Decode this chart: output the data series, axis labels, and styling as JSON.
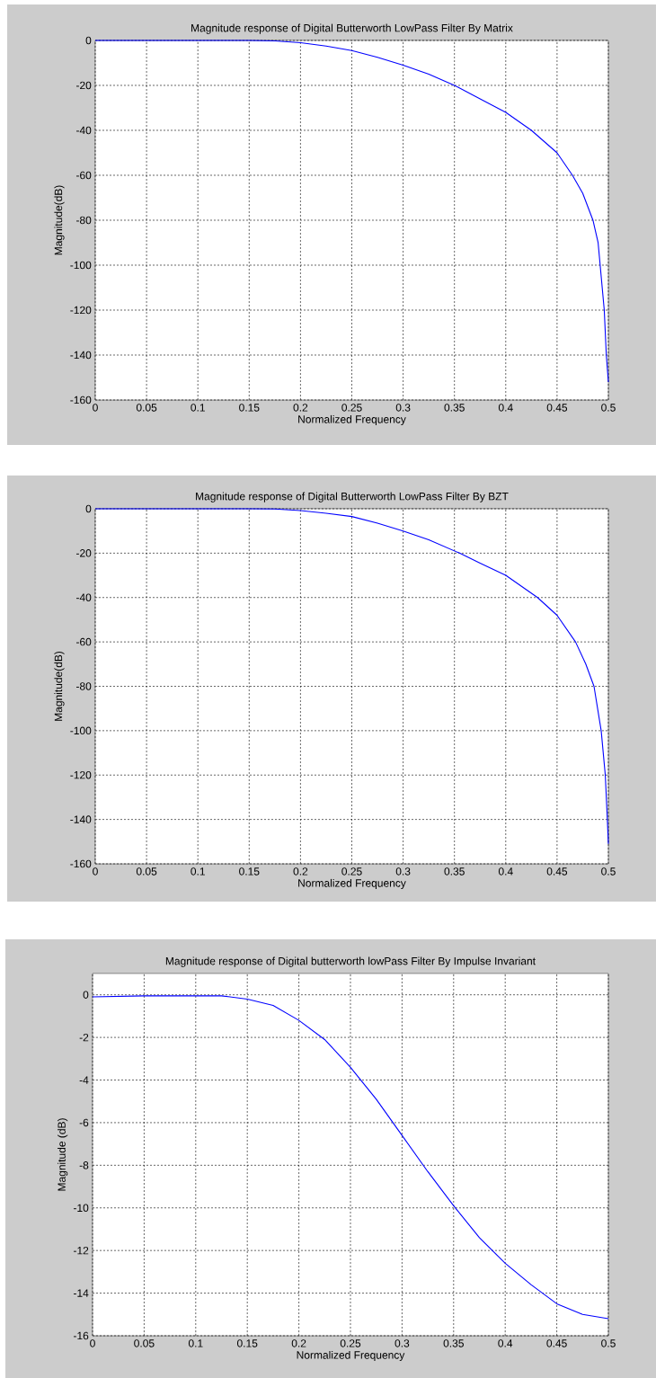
{
  "chart_data": [
    {
      "type": "line",
      "title": "Magnitude response of Digital Butterworth  LowPass Filter By Matrix",
      "xlabel": "Normalized Frequency",
      "ylabel": "Magnitude(dB)",
      "x": [
        0,
        0.05,
        0.1,
        0.15,
        0.175,
        0.2,
        0.225,
        0.25,
        0.275,
        0.3,
        0.325,
        0.35,
        0.375,
        0.4,
        0.425,
        0.45,
        0.465,
        0.475,
        0.485,
        0.49,
        0.492,
        0.496,
        0.498,
        0.5
      ],
      "series": [
        {
          "color": "#0000ff",
          "values": [
            0,
            0,
            0,
            0,
            -0.2,
            -1,
            -2.5,
            -4.5,
            -7.5,
            -11,
            -15,
            -20,
            -26,
            -32,
            -40,
            -50,
            -60,
            -68,
            -80,
            -90,
            -100,
            -120,
            -140,
            -152
          ]
        }
      ],
      "xlim": [
        0,
        0.5
      ],
      "ylim": [
        -160,
        0
      ],
      "xticks": [
        0,
        0.05,
        0.1,
        0.15,
        0.2,
        0.25,
        0.3,
        0.35,
        0.4,
        0.45,
        0.5
      ],
      "yticks": [
        -160,
        -140,
        -120,
        -100,
        -80,
        -60,
        -40,
        -20,
        0
      ],
      "grid": true
    },
    {
      "type": "line",
      "title": "Magnitude response of Digital Butterworth  LowPass Filter By BZT",
      "xlabel": "Normalized Frequency",
      "ylabel": "Magnitude(dB)",
      "x": [
        0,
        0.05,
        0.1,
        0.15,
        0.175,
        0.2,
        0.225,
        0.25,
        0.275,
        0.3,
        0.325,
        0.355,
        0.375,
        0.4,
        0.431,
        0.45,
        0.468,
        0.478,
        0.486,
        0.493,
        0.497,
        0.499,
        0.5
      ],
      "series": [
        {
          "color": "#0000ff",
          "values": [
            0,
            0,
            0,
            0,
            -0.1,
            -0.8,
            -2,
            -3.5,
            -6.5,
            -10,
            -14,
            -20,
            -24.5,
            -30,
            -40,
            -48,
            -60,
            -70,
            -80,
            -100,
            -120,
            -140,
            -151
          ]
        }
      ],
      "xlim": [
        0,
        0.5
      ],
      "ylim": [
        -160,
        0
      ],
      "xticks": [
        0,
        0.05,
        0.1,
        0.15,
        0.2,
        0.25,
        0.3,
        0.35,
        0.4,
        0.45,
        0.5
      ],
      "yticks": [
        -160,
        -140,
        -120,
        -100,
        -80,
        -60,
        -40,
        -20,
        0
      ],
      "grid": true
    },
    {
      "type": "line",
      "title": "Magnitude response of Digital butterworth lowPass Filter By Impulse Invariant",
      "xlabel": "Normalized Frequency",
      "ylabel": "Magnitude (dB)",
      "x": [
        0,
        0.05,
        0.1,
        0.125,
        0.15,
        0.175,
        0.2,
        0.225,
        0.25,
        0.275,
        0.3,
        0.325,
        0.35,
        0.375,
        0.4,
        0.425,
        0.45,
        0.475,
        0.5
      ],
      "series": [
        {
          "color": "#0000ff",
          "values": [
            -0.1,
            -0.05,
            -0.05,
            -0.05,
            -0.2,
            -0.5,
            -1.2,
            -2.1,
            -3.4,
            -4.9,
            -6.6,
            -8.3,
            -9.9,
            -11.4,
            -12.6,
            -13.6,
            -14.5,
            -15,
            -15.2
          ]
        }
      ],
      "xlim": [
        0,
        0.5
      ],
      "ylim": [
        -16,
        1
      ],
      "xticks": [
        0,
        0.05,
        0.1,
        0.15,
        0.2,
        0.25,
        0.3,
        0.35,
        0.4,
        0.45,
        0.5
      ],
      "yticks": [
        -16,
        -14,
        -12,
        -10,
        -8,
        -6,
        -4,
        -2,
        0
      ],
      "grid": true
    }
  ]
}
